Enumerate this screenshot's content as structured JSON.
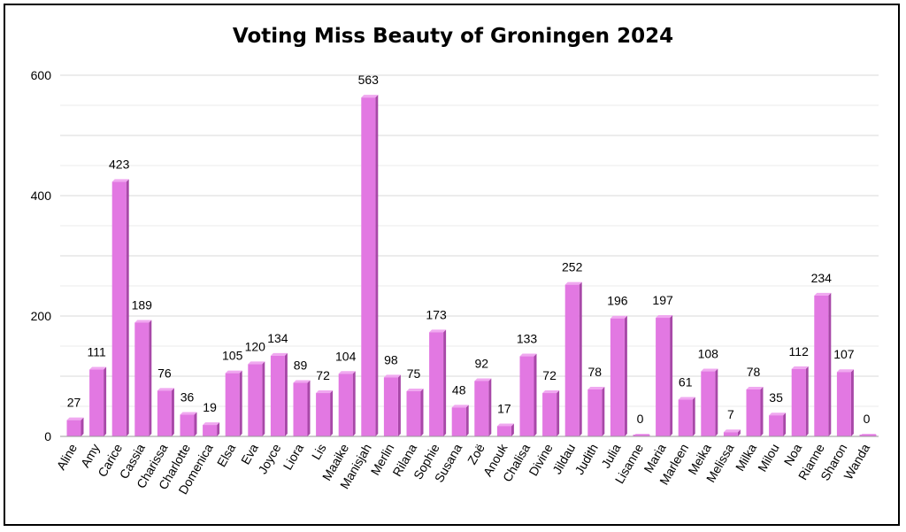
{
  "chart_data": {
    "type": "bar",
    "title": "Voting Miss Beauty of Groningen 2024",
    "xlabel": "",
    "ylabel": "",
    "ylim": [
      0,
      600
    ],
    "yticks": [
      "0",
      "200",
      "400",
      "600"
    ],
    "grid": true,
    "legend": "none",
    "bar_color": "#e278e2",
    "bar_side_color": "#a848a8",
    "bar_top_color": "#f0a8f0",
    "categories": [
      "Aline",
      "Amy",
      "Carice",
      "Cassia",
      "Charissa",
      "Charlotte",
      "Domenica",
      "Elsa",
      "Eva",
      "Joyce",
      "Liora",
      "Lis",
      "Maaike",
      "Manisjah",
      "Merlin",
      "Rilana",
      "Sophie",
      "Susana",
      "Zoë",
      "Anouk",
      "Chalisa",
      "Divine",
      "Jildau",
      "Judith",
      "Julia",
      "Lisanne",
      "Maria",
      "Marleen",
      "Meika",
      "Melissa",
      "Milka",
      "Milou",
      "Noa",
      "Rianne",
      "Sharon",
      "Wanda"
    ],
    "values": [
      27,
      111,
      423,
      189,
      76,
      36,
      19,
      105,
      120,
      134,
      89,
      72,
      104,
      563,
      98,
      75,
      173,
      48,
      92,
      17,
      133,
      72,
      252,
      78,
      196,
      0,
      197,
      61,
      108,
      7,
      78,
      35,
      112,
      234,
      107,
      0
    ],
    "value_labels": [
      "27",
      "111",
      "423",
      "189",
      "76",
      "36",
      "19",
      "105",
      "120",
      "134",
      "89",
      "72",
      "104",
      "563",
      "98",
      "75",
      "173",
      "48",
      "92",
      "17",
      "133",
      "72",
      "252",
      "78",
      "196",
      "0",
      "197",
      "61",
      "108",
      "7",
      "78",
      "35",
      "112",
      "234",
      "107",
      "0"
    ]
  }
}
